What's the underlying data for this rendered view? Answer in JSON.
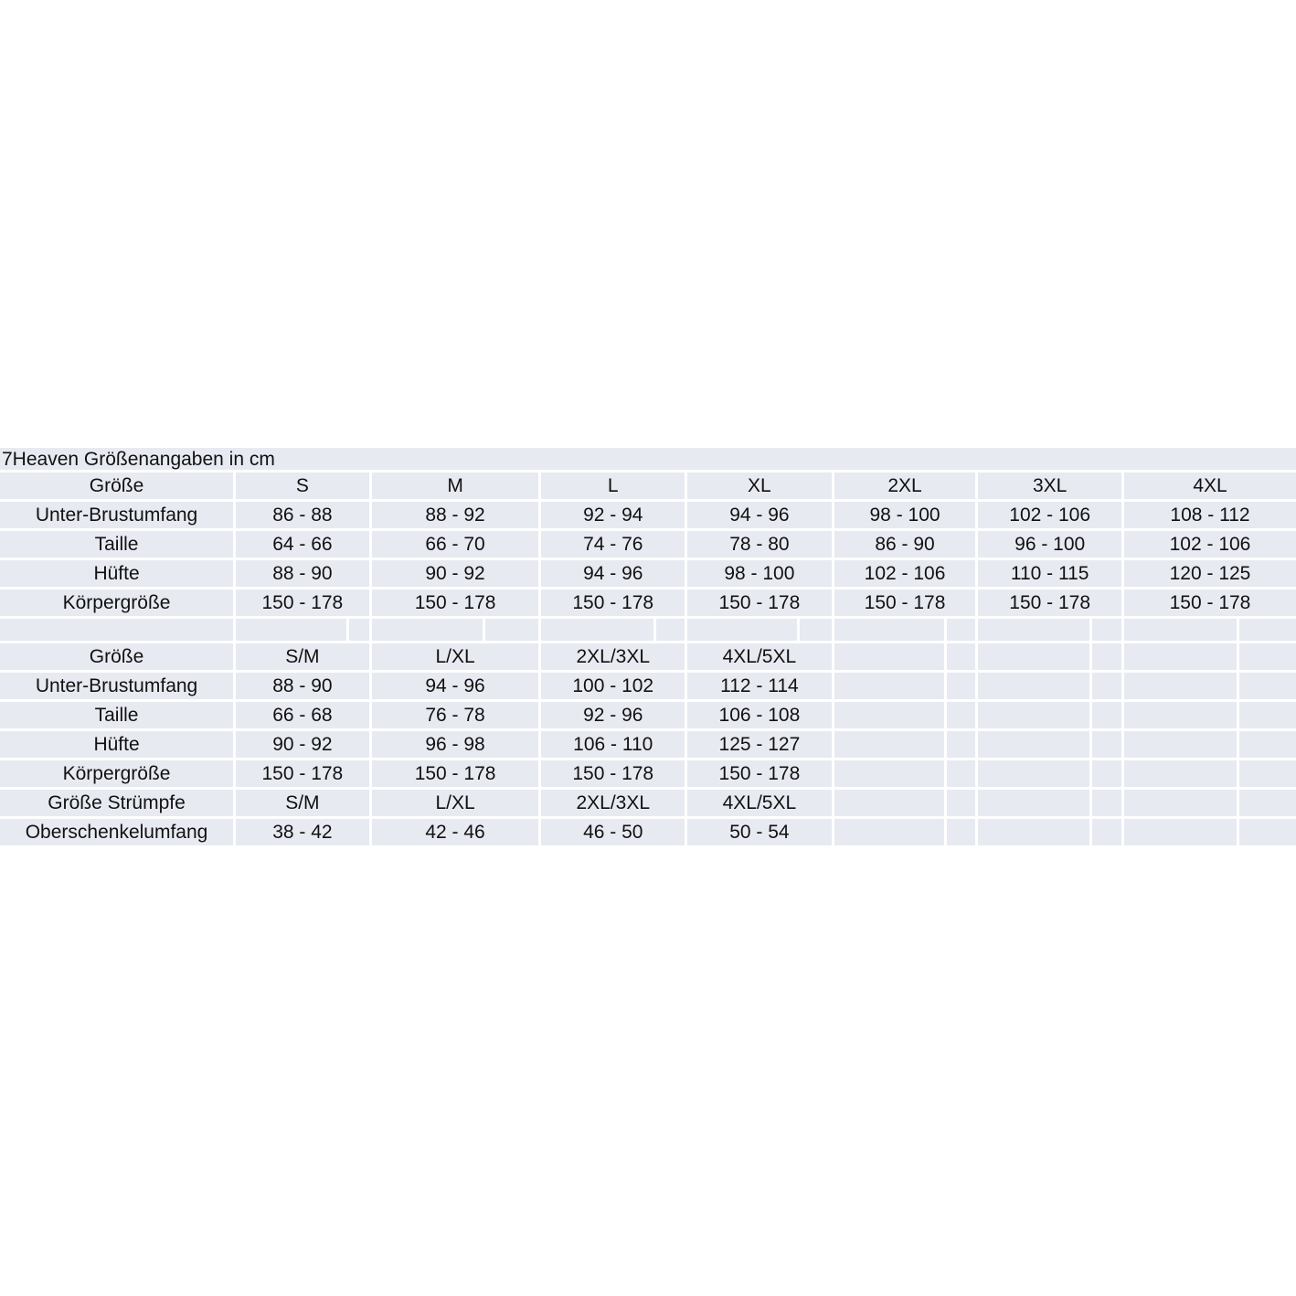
{
  "chart_data": {
    "type": "table",
    "title": "7Heaven Größenangaben in cm",
    "colors": {
      "cell_background": "#e8eaf2",
      "gridline": "#ffffff",
      "text": "#111111"
    },
    "tables": [
      {
        "header_label": "Größe",
        "columns": [
          "S",
          "M",
          "L",
          "XL",
          "2XL",
          "3XL",
          "4XL"
        ],
        "rows": [
          {
            "label": "Unter-Brustumfang",
            "values": [
              "86 - 88",
              "88 - 92",
              "92 - 94",
              "94 - 96",
              "98 - 100",
              "102 - 106",
              "108 - 112"
            ]
          },
          {
            "label": "Taille",
            "values": [
              "64 - 66",
              "66 - 70",
              "74 - 76",
              "78 - 80",
              "86 - 90",
              "96 - 100",
              "102 - 106"
            ]
          },
          {
            "label": "Hüfte",
            "values": [
              "88 - 90",
              "90 - 92",
              "94 - 96",
              "98 - 100",
              "102 - 106",
              "110 - 115",
              "120 - 125"
            ]
          },
          {
            "label": "Körpergröße",
            "values": [
              "150 - 178",
              "150 - 178",
              "150 - 178",
              "150 - 178",
              "150 - 178",
              "150 - 178",
              "150 - 178"
            ]
          }
        ]
      },
      {
        "header_label": "Größe",
        "columns": [
          "S/M",
          "L/XL",
          "2XL/3XL",
          "4XL/5XL"
        ],
        "rows": [
          {
            "label": "Unter-Brustumfang",
            "values": [
              "88 - 90",
              "94 - 96",
              "100 - 102",
              "112 - 114"
            ]
          },
          {
            "label": "Taille",
            "values": [
              "66 - 68",
              "76 - 78",
              "92 - 96",
              "106 - 108"
            ]
          },
          {
            "label": "Hüfte",
            "values": [
              "90 - 92",
              "96 - 98",
              "106 - 110",
              "125 - 127"
            ]
          },
          {
            "label": "Körpergröße",
            "values": [
              "150 - 178",
              "150 - 178",
              "150 - 178",
              "150 - 178"
            ]
          },
          {
            "label": "Größe Strümpfe",
            "values": [
              "S/M",
              "L/XL",
              "2XL/3XL",
              "4XL/5XL"
            ]
          },
          {
            "label": "Oberschenkelumfang",
            "values": [
              "38 - 42",
              "42 - 46",
              "46 - 50",
              "50 - 54"
            ]
          }
        ]
      }
    ]
  }
}
